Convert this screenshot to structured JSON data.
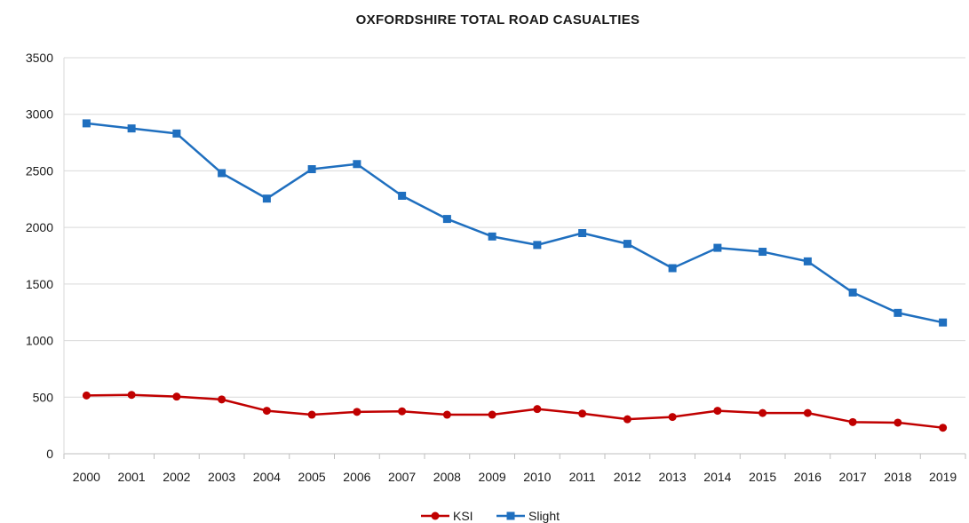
{
  "chart_data": {
    "type": "line",
    "title": "OXFORDSHIRE TOTAL ROAD CASUALTIES",
    "xlabel": "",
    "ylabel": "",
    "ylim": [
      0,
      3500
    ],
    "yticks": [
      0,
      500,
      1000,
      1500,
      2000,
      2500,
      3000,
      3500
    ],
    "grid": true,
    "legend_position": "bottom",
    "categories": [
      "2000",
      "2001",
      "2002",
      "2003",
      "2004",
      "2005",
      "2006",
      "2007",
      "2008",
      "2009",
      "2010",
      "2011",
      "2012",
      "2013",
      "2014",
      "2015",
      "2016",
      "2017",
      "2018",
      "2019"
    ],
    "series": [
      {
        "name": "KSI",
        "color": "#c00000",
        "marker": "circle",
        "values": [
          515,
          520,
          505,
          480,
          380,
          345,
          370,
          375,
          345,
          345,
          395,
          355,
          305,
          325,
          380,
          360,
          360,
          280,
          275,
          230
        ]
      },
      {
        "name": "Slight",
        "color": "#1f6fbf",
        "marker": "square",
        "values": [
          2920,
          2875,
          2830,
          2480,
          2255,
          2515,
          2560,
          2280,
          2075,
          1920,
          1845,
          1950,
          1855,
          1640,
          1820,
          1785,
          1700,
          1425,
          1245,
          1160
        ]
      }
    ]
  }
}
